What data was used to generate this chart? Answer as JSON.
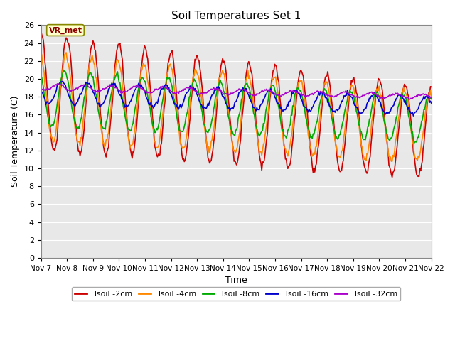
{
  "title": "Soil Temperatures Set 1",
  "xlabel": "Time",
  "ylabel": "Soil Temperature (C)",
  "xlim": [
    0,
    15
  ],
  "ylim": [
    0,
    26
  ],
  "yticks": [
    0,
    2,
    4,
    6,
    8,
    10,
    12,
    14,
    16,
    18,
    20,
    22,
    24,
    26
  ],
  "xtick_labels": [
    "Nov 7",
    "Nov 8",
    "Nov 9",
    "Nov 10",
    "Nov 11",
    "Nov 12",
    "Nov 13",
    "Nov 14",
    "Nov 15",
    "Nov 16",
    "Nov 17",
    "Nov 18",
    "Nov 19",
    "Nov 20",
    "Nov 21",
    "Nov 22"
  ],
  "xtick_positions": [
    0,
    1,
    2,
    3,
    4,
    5,
    6,
    7,
    8,
    9,
    10,
    11,
    12,
    13,
    14,
    15
  ],
  "colors": {
    "2cm": "#cc0000",
    "4cm": "#ff8800",
    "8cm": "#00aa00",
    "16cm": "#0000cc",
    "32cm": "#aa00cc"
  },
  "legend_labels": [
    "Tsoil -2cm",
    "Tsoil -4cm",
    "Tsoil -8cm",
    "Tsoil -16cm",
    "Tsoil -32cm"
  ],
  "annotation_text": "VR_met",
  "fig_facecolor": "#ffffff",
  "ax_facecolor": "#e8e8e8",
  "grid_color": "#ffffff",
  "n_points": 480
}
